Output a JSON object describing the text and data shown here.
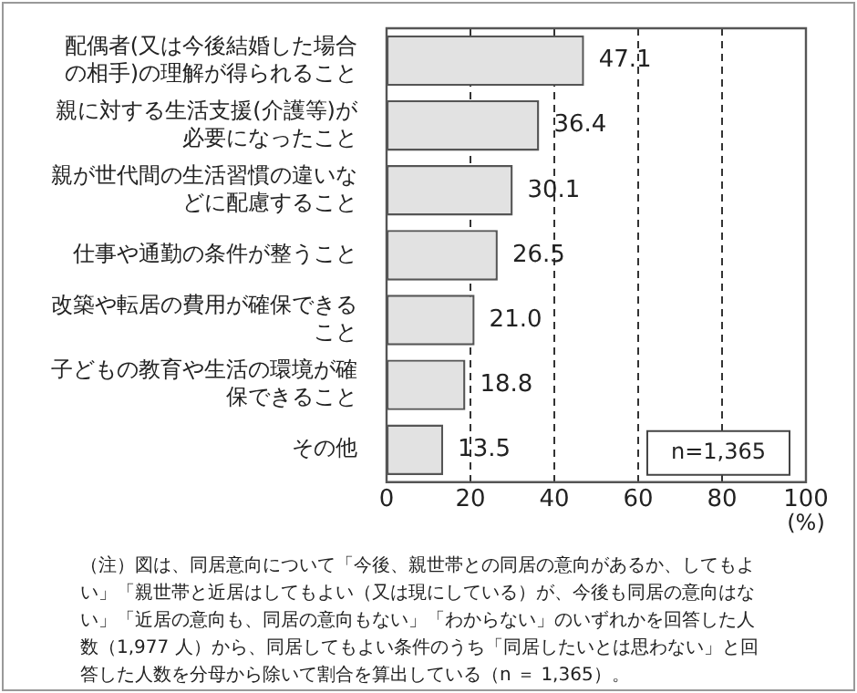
{
  "chart_data": {
    "type": "bar",
    "orientation": "horizontal",
    "xlabel": "(%)",
    "categories": [
      "配偶者(又は今後結婚した場合の相手)の理解が得られること",
      "親に対する生活支援(介護等)が必要になったこと",
      "親が世代間の生活習慣の違いなどに配慮すること",
      "仕事や通勤の条件が整うこと",
      "改築や転居の費用が確保できること",
      "子どもの教育や生活の環境が確保できること",
      "その他"
    ],
    "values": [
      47.1,
      36.4,
      30.1,
      26.5,
      21.0,
      18.8,
      13.5
    ],
    "value_labels": [
      "47.1",
      "36.4",
      "30.1",
      "26.5",
      "21.0",
      "18.8",
      "13.5"
    ],
    "color": "#e2e2e2",
    "xlim": [
      0,
      100
    ],
    "xticks": [
      0,
      20,
      40,
      60,
      80,
      100
    ],
    "grid": "x",
    "legend": false,
    "annotations": [
      "n=1,365",
      "（注）図は、同居意向について「今後、親世帯との同居の意向があるか、してもよい」「親世帯と近居はしてもよい（又は現にしている）が、今後も同居の意向はない」「近居の意向も、同居の意向もない」「わからない」のいずれかを回答した人数（1,977 人）から、同居してもよい条件のうち「同居したいとは思わない」と回答した人数を分母から除いて割合を算出している（n ＝ 1,365）。"
    ]
  }
}
